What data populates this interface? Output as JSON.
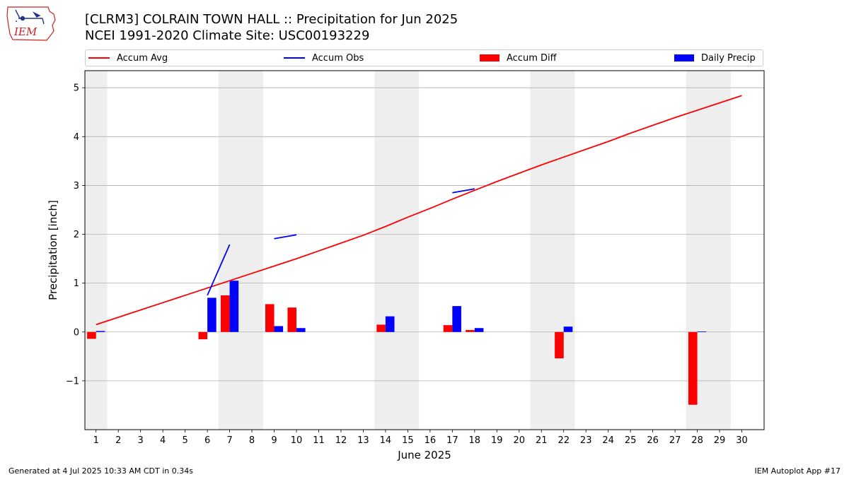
{
  "logo": {
    "text": "IEM"
  },
  "header": {
    "title_line1": "[CLRM3] COLRAIN TOWN HALL :: Precipitation for Jun 2025",
    "title_line2": "NCEI 1991-2020 Climate Site: USC00193229"
  },
  "legend": {
    "accum_avg": "Accum Avg",
    "accum_obs": "Accum Obs",
    "accum_diff": "Accum Diff",
    "daily_precip": "Daily Precip"
  },
  "colors": {
    "avg": "#ff0000",
    "obs": "#0000ff",
    "diff": "#ff0000",
    "daily": "#0000ff",
    "weekend": "#eeeeee",
    "grid": "#b0b0b0"
  },
  "chart_data": {
    "type": "bar",
    "xlabel": "June 2025",
    "ylabel": "Precipitation [inch]",
    "xlim": [
      0.5,
      31
    ],
    "ylim": [
      -2.0,
      5.35
    ],
    "yticks": [
      -1,
      0,
      1,
      2,
      3,
      4,
      5
    ],
    "ytick_labels": [
      "−1",
      "0",
      "1",
      "2",
      "3",
      "4",
      "5"
    ],
    "days": [
      1,
      2,
      3,
      4,
      5,
      6,
      7,
      8,
      9,
      10,
      11,
      12,
      13,
      14,
      15,
      16,
      17,
      18,
      19,
      20,
      21,
      22,
      23,
      24,
      25,
      26,
      27,
      28,
      29,
      30
    ],
    "weekend_spans": [
      [
        0.5,
        1.5
      ],
      [
        6.5,
        8.5
      ],
      [
        13.5,
        15.5
      ],
      [
        20.5,
        22.5
      ],
      [
        27.5,
        29.5
      ]
    ],
    "series": [
      {
        "name": "Accum Avg",
        "kind": "line",
        "values": [
          0.15,
          0.3,
          0.45,
          0.6,
          0.75,
          0.9,
          1.05,
          1.2,
          1.35,
          1.5,
          1.66,
          1.82,
          1.98,
          2.16,
          2.35,
          2.53,
          2.72,
          2.9,
          3.08,
          3.25,
          3.42,
          3.58,
          3.74,
          3.9,
          4.07,
          4.23,
          4.39,
          4.54,
          4.69,
          4.84
        ]
      },
      {
        "name": "Accum Obs",
        "kind": "line-segments",
        "segments": [
          {
            "x": [
              6,
              7
            ],
            "y": [
              0.75,
              1.79
            ]
          },
          {
            "x": [
              9,
              10
            ],
            "y": [
              1.91,
              1.99
            ]
          },
          {
            "x": [
              17,
              18
            ],
            "y": [
              2.85,
              2.93
            ]
          }
        ]
      },
      {
        "name": "Accum Diff",
        "kind": "bar",
        "points": [
          {
            "day": 1,
            "value": -0.14
          },
          {
            "day": 6,
            "value": -0.15
          },
          {
            "day": 7,
            "value": 0.75
          },
          {
            "day": 9,
            "value": 0.57
          },
          {
            "day": 10,
            "value": 0.5
          },
          {
            "day": 14,
            "value": 0.15
          },
          {
            "day": 17,
            "value": 0.14
          },
          {
            "day": 18,
            "value": 0.04
          },
          {
            "day": 22,
            "value": -0.54
          },
          {
            "day": 28,
            "value": -1.49
          }
        ]
      },
      {
        "name": "Daily Precip",
        "kind": "bar",
        "points": [
          {
            "day": 1,
            "value": 0.02
          },
          {
            "day": 6,
            "value": 0.7
          },
          {
            "day": 7,
            "value": 1.05
          },
          {
            "day": 9,
            "value": 0.12
          },
          {
            "day": 10,
            "value": 0.08
          },
          {
            "day": 14,
            "value": 0.32
          },
          {
            "day": 17,
            "value": 0.53
          },
          {
            "day": 18,
            "value": 0.08
          },
          {
            "day": 22,
            "value": 0.11
          },
          {
            "day": 28,
            "value": 0.01
          }
        ]
      }
    ]
  },
  "footer": {
    "generated": "Generated at 4 Jul 2025 10:33 AM CDT in 0.34s",
    "app": "IEM Autoplot App #17"
  }
}
